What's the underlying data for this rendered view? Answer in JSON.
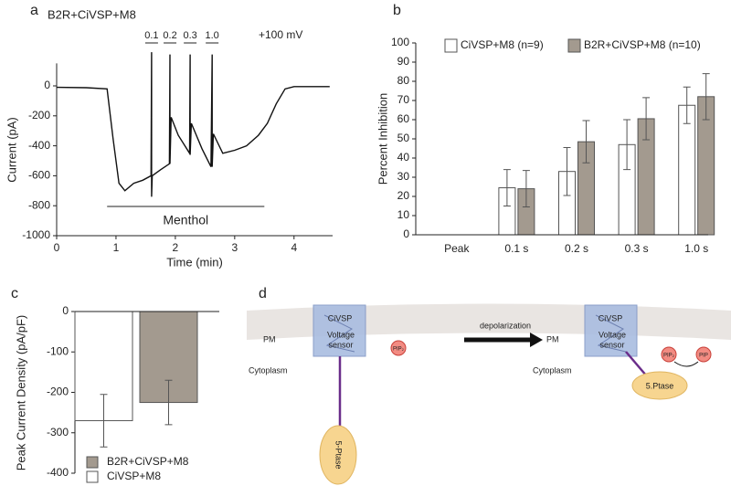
{
  "chart_data": [
    {
      "panel": "a",
      "type": "line",
      "title": "B2R+CiVSP+M8",
      "x_label": "Time (min)",
      "y_label": "Current (pA)",
      "x": [
        0,
        0.5,
        0.85,
        0.95,
        1.05,
        1.15,
        1.3,
        1.45,
        1.59,
        1.6,
        1.6,
        1.61,
        1.75,
        1.9,
        1.91,
        1.91,
        1.93,
        2.05,
        2.24,
        2.25,
        2.25,
        2.27,
        2.45,
        2.6,
        2.62,
        2.62,
        2.64,
        2.8,
        3.0,
        3.2,
        3.4,
        3.55,
        3.7,
        3.85,
        4.0,
        4.6
      ],
      "values": [
        -10,
        -12,
        -20,
        -350,
        -650,
        -700,
        -650,
        -630,
        -600,
        225,
        -740,
        -600,
        -560,
        -520,
        210,
        -520,
        -210,
        -330,
        -450,
        210,
        -460,
        -250,
        -420,
        -540,
        210,
        -540,
        -320,
        -450,
        -430,
        -400,
        -330,
        -250,
        -120,
        -20,
        -5,
        -5
      ],
      "color": "#111111",
      "xlim": [
        0,
        4.65
      ],
      "xticks": [
        0,
        1,
        2,
        3,
        4
      ],
      "ylim": [
        -1000,
        150
      ],
      "yticks": [
        -1000,
        -800,
        -600,
        -400,
        -200,
        0
      ],
      "annotations": [
        {
          "text": "0.1",
          "x": 1.6
        },
        {
          "text": "0.2",
          "x": 1.91
        },
        {
          "text": "0.3",
          "x": 2.25
        },
        {
          "text": "1.0",
          "x": 2.62
        },
        {
          "text": "+100 mV"
        },
        {
          "text": "Menthol",
          "x": [
            0.85,
            3.5
          ]
        }
      ]
    },
    {
      "panel": "b",
      "type": "bar",
      "y_label": "Percent Inhibition",
      "legend": "top",
      "categories": [
        "Peak",
        "0.1 s",
        "0.2 s",
        "0.3 s",
        "1.0 s"
      ],
      "series": [
        {
          "name": "CiVSP+M8 (n=9)",
          "color": "#ffffff",
          "values": [
            0,
            24.5,
            33,
            47,
            67.5
          ],
          "errors": [
            null,
            9.5,
            12.5,
            13,
            9.5
          ]
        },
        {
          "name": "B2R+CiVSP+M8 (n=10)",
          "color": "#a39a8f",
          "values": [
            0,
            24,
            48.5,
            60.5,
            72
          ],
          "errors": [
            null,
            9.5,
            11,
            11,
            12
          ]
        }
      ],
      "ylim": [
        0,
        100
      ],
      "yticks": [
        0,
        10,
        20,
        30,
        40,
        50,
        60,
        70,
        80,
        90,
        100
      ]
    },
    {
      "panel": "c",
      "type": "bar",
      "y_label": "Peak Current Density (pA/pF)",
      "legend": "lower left",
      "series": [
        {
          "name": "CiVSP+M8",
          "color": "#ffffff",
          "values": [
            -270
          ],
          "errors": [
            65
          ]
        },
        {
          "name": "B2R+CiVSP+M8",
          "color": "#a39a8f",
          "values": [
            -225
          ],
          "errors": [
            55
          ]
        }
      ],
      "ylim": [
        -400,
        0
      ],
      "yticks": [
        -400,
        -300,
        -200,
        -100,
        0
      ]
    }
  ],
  "diagram": {
    "panel": "d",
    "left": {
      "protein": "CiVSP",
      "sensor": [
        "Voltage",
        "sensor"
      ],
      "membrane": "PM",
      "side": "Cytoplasm",
      "enzyme": "5-Ptase",
      "lipid": "PIP₂"
    },
    "arrow_label": "depolarization",
    "right": {
      "protein": "CiVSP",
      "sensor": [
        "Voltage",
        "sensor"
      ],
      "membrane": "PM",
      "side": "Cytoplasm",
      "enzyme": "5.Ptase",
      "lipids": [
        "PIP₂",
        "PIP"
      ]
    }
  }
}
